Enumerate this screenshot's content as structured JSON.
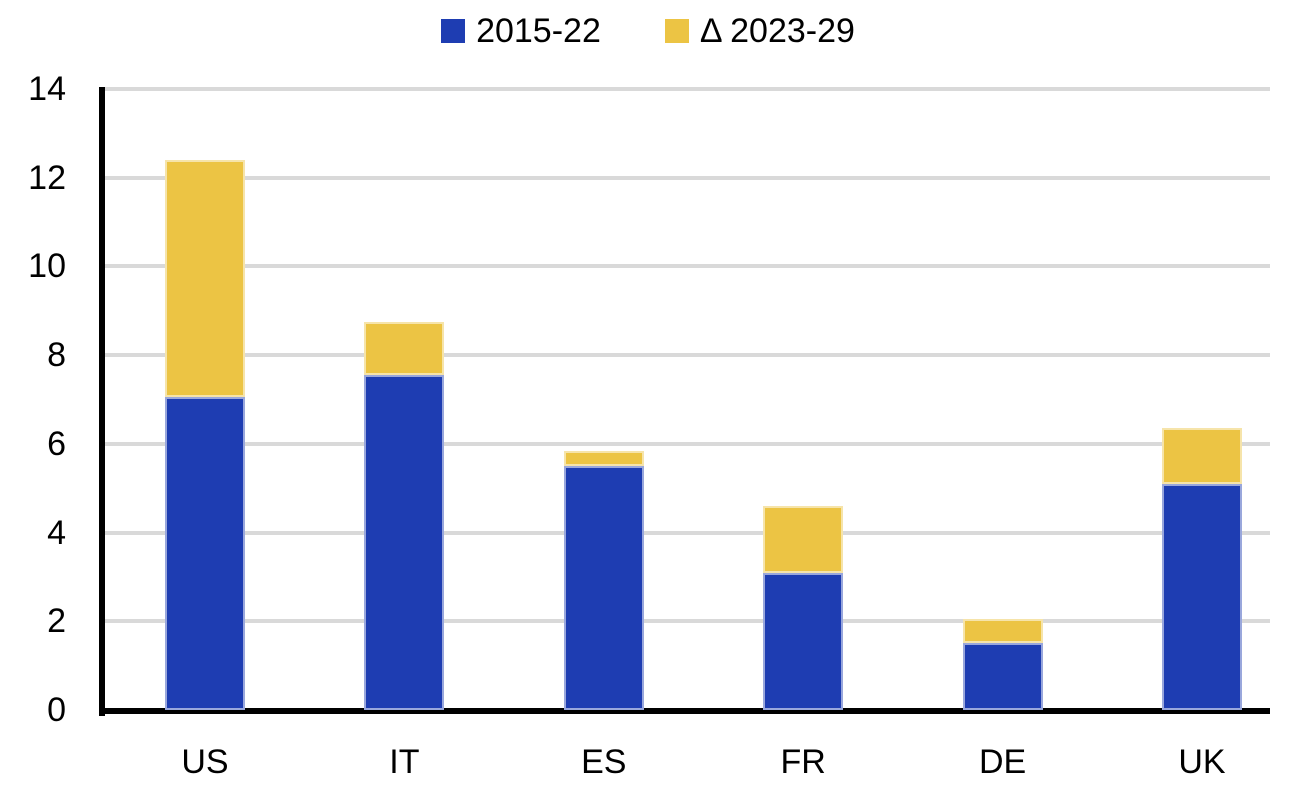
{
  "colors": {
    "background": "#ffffff",
    "series_blue": "#1e3db2",
    "series_yellow": "#ecc444",
    "gridline": "#d9d9d9",
    "axis": "#000000",
    "text": "#000000"
  },
  "chart_data": {
    "type": "bar",
    "stacked": true,
    "title": "",
    "xlabel": "",
    "ylabel": "",
    "categories": [
      "US",
      "IT",
      "ES",
      "FR",
      "DE",
      "UK"
    ],
    "series": [
      {
        "name": "2015-22",
        "color": "#1e3db2",
        "values": [
          7.05,
          7.55,
          5.5,
          3.1,
          1.5,
          5.1
        ]
      },
      {
        "name": "Δ 2023-29",
        "color": "#ecc444",
        "values": [
          5.35,
          1.2,
          0.35,
          1.5,
          0.55,
          1.25
        ]
      }
    ],
    "stack_totals": [
      12.4,
      8.75,
      5.85,
      4.6,
      2.05,
      6.35
    ],
    "ylim": [
      0,
      14
    ],
    "y_ticks": [
      0,
      2,
      4,
      6,
      8,
      10,
      12,
      14
    ],
    "grid": true,
    "legend_position": "top"
  }
}
